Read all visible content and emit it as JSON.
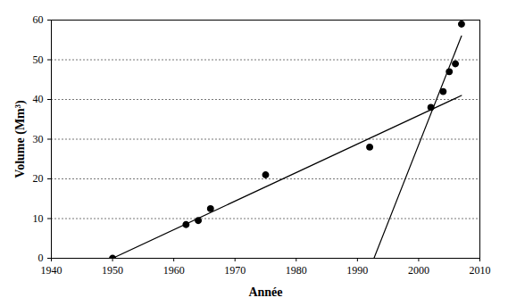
{
  "chart_data": {
    "type": "scatter",
    "xlabel": "Année",
    "ylabel": "Volume (Mm³)",
    "xlim": [
      1940,
      2010
    ],
    "ylim": [
      0,
      60
    ],
    "xticks": [
      1940,
      1950,
      1960,
      1970,
      1980,
      1990,
      2000,
      2010
    ],
    "yticks": [
      0,
      10,
      20,
      30,
      40,
      50,
      60
    ],
    "grid": "y",
    "series": [
      {
        "type": "scatter",
        "color": "#000000",
        "marker": "circle",
        "x": [
          1950,
          1962,
          1964,
          1966,
          1975,
          1992,
          2002,
          2004,
          2005,
          2006,
          2007
        ],
        "values": [
          0,
          8.5,
          9.5,
          12.5,
          21,
          28,
          38,
          42,
          47,
          49,
          59
        ]
      },
      {
        "type": "line",
        "color": "#000000",
        "line_style": "solid",
        "x": [
          1950,
          2007
        ],
        "values": [
          0,
          41
        ]
      },
      {
        "type": "line",
        "color": "#000000",
        "line_style": "solid",
        "x": [
          1992.7,
          2007
        ],
        "values": [
          0,
          56
        ]
      }
    ]
  }
}
